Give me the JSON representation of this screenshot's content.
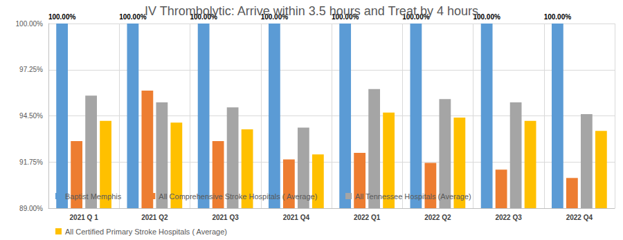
{
  "chart_data": {
    "type": "bar",
    "title": "IV Thrombolytic: Arrive within 3.5 hours and Treat by 4 hours",
    "categories": [
      "2021 Q 1",
      "2021 Q2",
      "2021 Q3",
      "2021 Q4",
      "2022 Q1",
      "2022 Q2",
      "2022 Q3",
      "2022 Q4"
    ],
    "series": [
      {
        "name": "Baptist Memphis",
        "color": "#5B9BD5",
        "values": [
          100,
          100,
          100,
          100,
          100,
          100,
          100,
          100
        ],
        "data_labels": true,
        "value_labels": [
          "100.00%",
          "100.00%",
          "100.00%",
          "100.00%",
          "100.00%",
          "100.00%",
          "100.00%",
          "100.00%"
        ]
      },
      {
        "name": "All Comprehensive Stroke Hospitals ( Average)",
        "color": "#ED7D31",
        "values": [
          93.0,
          96.0,
          93.0,
          91.9,
          92.3,
          91.7,
          91.3,
          90.8
        ]
      },
      {
        "name": "All Tennessee Hospitals (Average)",
        "color": "#A5A5A5",
        "values": [
          95.7,
          95.3,
          95.0,
          93.8,
          96.1,
          95.5,
          95.3,
          94.6
        ]
      },
      {
        "name": "All Certified Primary Stroke Hospitals ( Average)",
        "color": "#FFC000",
        "values": [
          94.2,
          94.1,
          93.7,
          92.2,
          94.7,
          94.4,
          94.2,
          93.6
        ]
      }
    ],
    "ylim": [
      89,
      100
    ],
    "yticks": [
      {
        "value": 89,
        "label": "89.00%"
      },
      {
        "value": 91.75,
        "label": "91.75%"
      },
      {
        "value": 94.5,
        "label": "94.50%"
      },
      {
        "value": 97.25,
        "label": "97.25%"
      },
      {
        "value": 100,
        "label": "100.00%"
      }
    ],
    "grid": true,
    "legend": "bottom"
  }
}
